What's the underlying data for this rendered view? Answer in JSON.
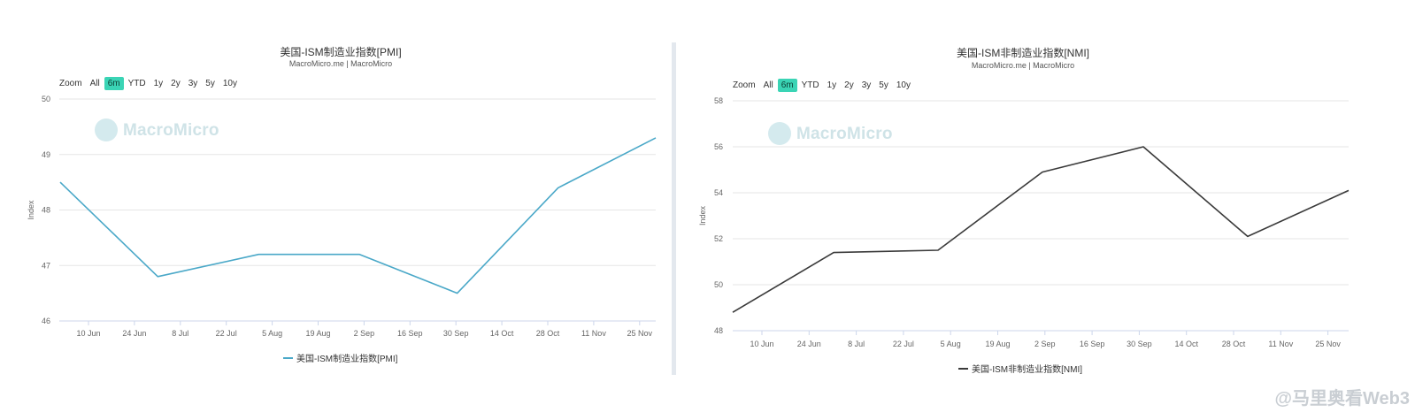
{
  "charts": [
    {
      "title": "美国-ISM制造业指数[PMI]",
      "subtitle": "MacroMicro.me | MacroMicro",
      "watermark": "MacroMicro",
      "zoom": {
        "label": "Zoom",
        "options": [
          "All",
          "6m",
          "YTD",
          "1y",
          "2y",
          "3y",
          "5y",
          "10y"
        ],
        "active": "6m"
      },
      "legend": "美国-ISM制造业指数[PMI]"
    },
    {
      "title": "美国-ISM非制造业指数[NMI]",
      "subtitle": "MacroMicro.me | MacroMicro",
      "watermark": "MacroMicro",
      "zoom": {
        "label": "Zoom",
        "options": [
          "All",
          "6m",
          "YTD",
          "1y",
          "2y",
          "3y",
          "5y",
          "10y"
        ],
        "active": "6m"
      },
      "legend": "美国-ISM非制造业指数[NMI]"
    }
  ],
  "source_stamp": "@马里奥看Web3",
  "colors": {
    "pmi_line": "#4aa8c8",
    "nmi_line": "#3a3a3a",
    "zoom_active": "#3ad4b5",
    "grid": "#e6e6e6"
  },
  "chart_data": [
    {
      "type": "line",
      "title": "美国-ISM制造业指数[PMI]",
      "ylabel": "Index",
      "ylim": [
        46,
        50
      ],
      "yticks": [
        "46",
        "47",
        "48",
        "49",
        "50"
      ],
      "xticks": [
        "10 Jun",
        "24 Jun",
        "8 Jul",
        "22 Jul",
        "5 Aug",
        "19 Aug",
        "2 Sep",
        "16 Sep",
        "30 Sep",
        "14 Oct",
        "28 Oct",
        "11 Nov",
        "25 Nov"
      ],
      "grid": true,
      "legend_position": "bottom",
      "series": [
        {
          "name": "美国-ISM制造业指数[PMI]",
          "x": [
            "2024-06-01",
            "2024-07-01",
            "2024-08-01",
            "2024-09-01",
            "2024-10-01",
            "2024-11-01",
            "2024-12-01"
          ],
          "values": [
            48.5,
            46.8,
            47.2,
            47.2,
            46.5,
            48.4,
            49.3
          ]
        }
      ]
    },
    {
      "type": "line",
      "title": "美国-ISM非制造业指数[NMI]",
      "ylabel": "Index",
      "ylim": [
        48,
        58
      ],
      "yticks": [
        "48",
        "50",
        "52",
        "54",
        "56",
        "58"
      ],
      "xticks": [
        "10 Jun",
        "24 Jun",
        "8 Jul",
        "22 Jul",
        "5 Aug",
        "19 Aug",
        "2 Sep",
        "16 Sep",
        "30 Sep",
        "14 Oct",
        "28 Oct",
        "11 Nov",
        "25 Nov"
      ],
      "grid": true,
      "legend_position": "bottom",
      "series": [
        {
          "name": "美国-ISM非制造业指数[NMI]",
          "x": [
            "2024-06-01",
            "2024-07-01",
            "2024-08-01",
            "2024-09-01",
            "2024-10-01",
            "2024-11-01",
            "2024-12-01"
          ],
          "values": [
            48.8,
            51.4,
            51.5,
            54.9,
            56.0,
            52.1,
            54.1
          ]
        }
      ]
    }
  ]
}
